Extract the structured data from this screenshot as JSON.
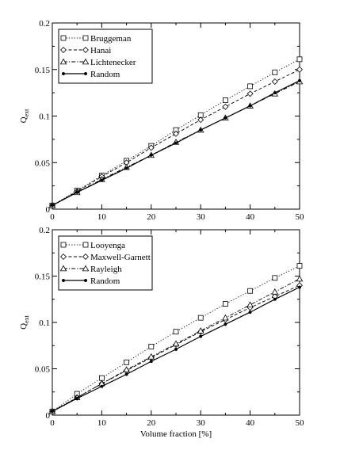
{
  "chart_data": [
    {
      "type": "line",
      "ylabel": "Q",
      "ylabel_sub": "ext",
      "xlabel": "",
      "xlim": [
        0,
        50
      ],
      "ylim": [
        0,
        0.2
      ],
      "xticks": [
        "0",
        "10",
        "20",
        "30",
        "40",
        "50"
      ],
      "yticks": [
        "0",
        "0.05",
        "0.1",
        "0.15",
        "0.2"
      ],
      "grid": false,
      "legend_position": "top-left",
      "series": [
        {
          "name": "Bruggeman",
          "marker": "square",
          "dash": "dotted",
          "x": [
            0,
            5,
            10,
            15,
            20,
            25,
            30,
            35,
            40,
            45,
            50
          ],
          "y": [
            0.004,
            0.02,
            0.036,
            0.052,
            0.068,
            0.085,
            0.101,
            0.117,
            0.132,
            0.147,
            0.161
          ]
        },
        {
          "name": "Hanai",
          "marker": "diamond",
          "dash": "dashed",
          "x": [
            0,
            5,
            10,
            15,
            20,
            25,
            30,
            35,
            40,
            45,
            50
          ],
          "y": [
            0.004,
            0.019,
            0.035,
            0.05,
            0.066,
            0.081,
            0.096,
            0.11,
            0.124,
            0.137,
            0.15
          ]
        },
        {
          "name": "Lichtenecker",
          "marker": "triangle",
          "dash": "dashdot",
          "x": [
            0,
            5,
            10,
            15,
            20,
            25,
            30,
            35,
            40,
            45,
            50
          ],
          "y": [
            0.004,
            0.018,
            0.032,
            0.045,
            0.058,
            0.072,
            0.085,
            0.098,
            0.111,
            0.124,
            0.137
          ]
        },
        {
          "name": "Random",
          "marker": "dot",
          "dash": "solid",
          "x": [
            0,
            5,
            10,
            15,
            20,
            25,
            30,
            35,
            40,
            45,
            50
          ],
          "y": [
            0.004,
            0.018,
            0.031,
            0.044,
            0.058,
            0.071,
            0.085,
            0.098,
            0.111,
            0.125,
            0.138
          ]
        }
      ]
    },
    {
      "type": "line",
      "ylabel": "Q",
      "ylabel_sub": "ext",
      "xlabel": "Volume fraction [%]",
      "xlim": [
        0,
        50
      ],
      "ylim": [
        0,
        0.2
      ],
      "xticks": [
        "0",
        "10",
        "20",
        "30",
        "40",
        "50"
      ],
      "yticks": [
        "0",
        "0.05",
        "0.1",
        "0.15",
        "0.2"
      ],
      "grid": false,
      "legend_position": "top-left",
      "series": [
        {
          "name": "Looyenga",
          "marker": "square",
          "dash": "dotted",
          "x": [
            0,
            5,
            10,
            15,
            20,
            25,
            30,
            35,
            40,
            45,
            50
          ],
          "y": [
            0.004,
            0.023,
            0.04,
            0.057,
            0.074,
            0.09,
            0.105,
            0.12,
            0.134,
            0.148,
            0.161
          ]
        },
        {
          "name": "Maxwell-Garnett",
          "marker": "diamond",
          "dash": "dashed",
          "x": [
            0,
            5,
            10,
            15,
            20,
            25,
            30,
            35,
            40,
            45,
            50
          ],
          "y": [
            0.004,
            0.019,
            0.034,
            0.048,
            0.062,
            0.076,
            0.09,
            0.103,
            0.116,
            0.128,
            0.14
          ]
        },
        {
          "name": "Rayleigh",
          "marker": "triangle",
          "dash": "dashdot",
          "x": [
            0,
            5,
            10,
            15,
            20,
            25,
            30,
            35,
            40,
            45,
            50
          ],
          "y": [
            0.004,
            0.019,
            0.034,
            0.049,
            0.063,
            0.077,
            0.091,
            0.105,
            0.119,
            0.133,
            0.147
          ]
        },
        {
          "name": "Random",
          "marker": "dot",
          "dash": "solid",
          "x": [
            0,
            5,
            10,
            15,
            20,
            25,
            30,
            35,
            40,
            45,
            50
          ],
          "y": [
            0.004,
            0.018,
            0.031,
            0.044,
            0.058,
            0.071,
            0.085,
            0.098,
            0.111,
            0.125,
            0.138
          ]
        }
      ]
    }
  ]
}
